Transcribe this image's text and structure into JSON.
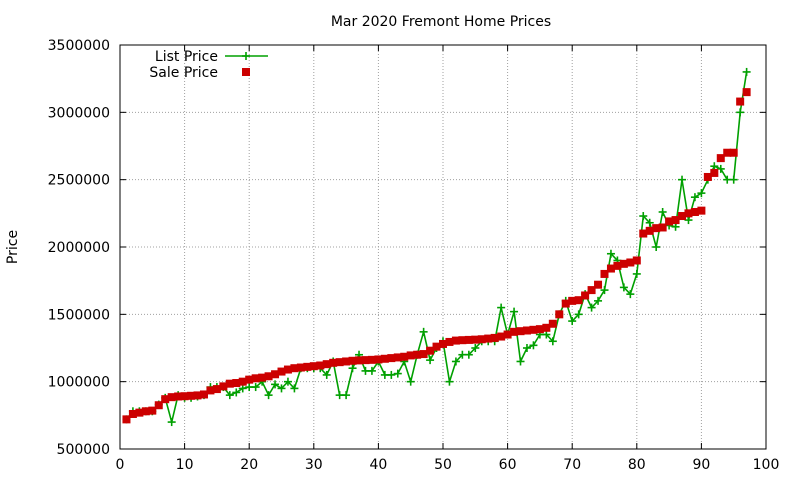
{
  "chart_data": {
    "type": "line",
    "title": "Mar 2020 Fremont Home Prices",
    "xlabel": "",
    "ylabel": "Price",
    "xlim": [
      0,
      100
    ],
    "ylim": [
      500000,
      3500000
    ],
    "x_ticks": [
      "0",
      "10",
      "20",
      "30",
      "40",
      "50",
      "60",
      "70",
      "80",
      "90",
      "100"
    ],
    "y_ticks": [
      "500000",
      "1000000",
      "1500000",
      "2000000",
      "2500000",
      "3000000",
      "3500000"
    ],
    "grid": true,
    "legend_position": "top-left",
    "series": [
      {
        "name": "List Price",
        "style": "line-with-plus-markers",
        "color": "#00a000",
        "x": [
          1,
          2,
          3,
          4,
          5,
          6,
          7,
          8,
          9,
          10,
          11,
          12,
          13,
          14,
          15,
          16,
          17,
          18,
          19,
          20,
          21,
          22,
          23,
          24,
          25,
          26,
          27,
          28,
          29,
          30,
          31,
          32,
          33,
          34,
          35,
          36,
          37,
          38,
          39,
          40,
          41,
          42,
          43,
          44,
          45,
          46,
          47,
          48,
          49,
          50,
          51,
          52,
          53,
          54,
          55,
          56,
          57,
          58,
          59,
          60,
          61,
          62,
          63,
          64,
          65,
          66,
          67,
          68,
          69,
          70,
          71,
          72,
          73,
          74,
          75,
          76,
          77,
          78,
          79,
          80,
          81,
          82,
          83,
          84,
          85,
          86,
          87,
          88,
          89,
          90,
          91,
          92,
          93,
          94,
          95,
          96,
          97
        ],
        "values": [
          720000,
          780000,
          780000,
          780000,
          780000,
          830000,
          880000,
          700000,
          900000,
          880000,
          880000,
          890000,
          900000,
          960000,
          960000,
          960000,
          900000,
          920000,
          950000,
          960000,
          960000,
          1000000,
          900000,
          980000,
          950000,
          1000000,
          950000,
          1100000,
          1100000,
          1100000,
          1100000,
          1050000,
          1150000,
          900000,
          900000,
          1100000,
          1200000,
          1080000,
          1080000,
          1150000,
          1050000,
          1050000,
          1060000,
          1150000,
          1000000,
          1200000,
          1370000,
          1160000,
          1250000,
          1300000,
          1000000,
          1150000,
          1200000,
          1200000,
          1250000,
          1300000,
          1300000,
          1300000,
          1550000,
          1350000,
          1520000,
          1150000,
          1250000,
          1270000,
          1350000,
          1350000,
          1300000,
          1500000,
          1600000,
          1450000,
          1500000,
          1650000,
          1550000,
          1600000,
          1680000,
          1950000,
          1900000,
          1700000,
          1650000,
          1800000,
          2230000,
          2180000,
          2000000,
          2260000,
          2160000,
          2150000,
          2500000,
          2200000,
          2370000,
          2400000,
          2500000,
          2600000,
          2580000,
          2500000,
          2500000,
          3000000,
          3300000
        ]
      },
      {
        "name": "Sale Price",
        "style": "square-markers",
        "color": "#cc0000",
        "x": [
          1,
          2,
          3,
          4,
          5,
          6,
          7,
          8,
          9,
          10,
          11,
          12,
          13,
          14,
          15,
          16,
          17,
          18,
          19,
          20,
          21,
          22,
          23,
          24,
          25,
          26,
          27,
          28,
          29,
          30,
          31,
          32,
          33,
          34,
          35,
          36,
          37,
          38,
          39,
          40,
          41,
          42,
          43,
          44,
          45,
          46,
          47,
          48,
          49,
          50,
          51,
          52,
          53,
          54,
          55,
          56,
          57,
          58,
          59,
          60,
          61,
          62,
          63,
          64,
          65,
          66,
          67,
          68,
          69,
          70,
          71,
          72,
          73,
          74,
          75,
          76,
          77,
          78,
          79,
          80,
          81,
          82,
          83,
          84,
          85,
          86,
          87,
          88,
          89,
          90,
          91,
          92,
          93,
          94,
          95,
          96,
          97
        ],
        "values": [
          720000,
          760000,
          770000,
          780000,
          785000,
          825000,
          870000,
          885000,
          890000,
          892000,
          895000,
          898000,
          905000,
          935000,
          945000,
          965000,
          985000,
          990000,
          1000000,
          1015000,
          1025000,
          1030000,
          1040000,
          1055000,
          1075000,
          1090000,
          1100000,
          1105000,
          1110000,
          1115000,
          1120000,
          1130000,
          1140000,
          1145000,
          1150000,
          1155000,
          1158000,
          1160000,
          1162000,
          1165000,
          1170000,
          1175000,
          1180000,
          1185000,
          1195000,
          1200000,
          1205000,
          1230000,
          1260000,
          1280000,
          1295000,
          1305000,
          1308000,
          1310000,
          1312000,
          1315000,
          1320000,
          1325000,
          1335000,
          1350000,
          1370000,
          1375000,
          1380000,
          1385000,
          1390000,
          1400000,
          1430000,
          1500000,
          1580000,
          1600000,
          1605000,
          1640000,
          1680000,
          1720000,
          1800000,
          1840000,
          1860000,
          1875000,
          1885000,
          1900000,
          2100000,
          2120000,
          2140000,
          2145000,
          2190000,
          2200000,
          2230000,
          2250000,
          2260000,
          2270000,
          2520000,
          2550000,
          2660000,
          2700000,
          2700000,
          3080000,
          3150000
        ]
      }
    ]
  }
}
